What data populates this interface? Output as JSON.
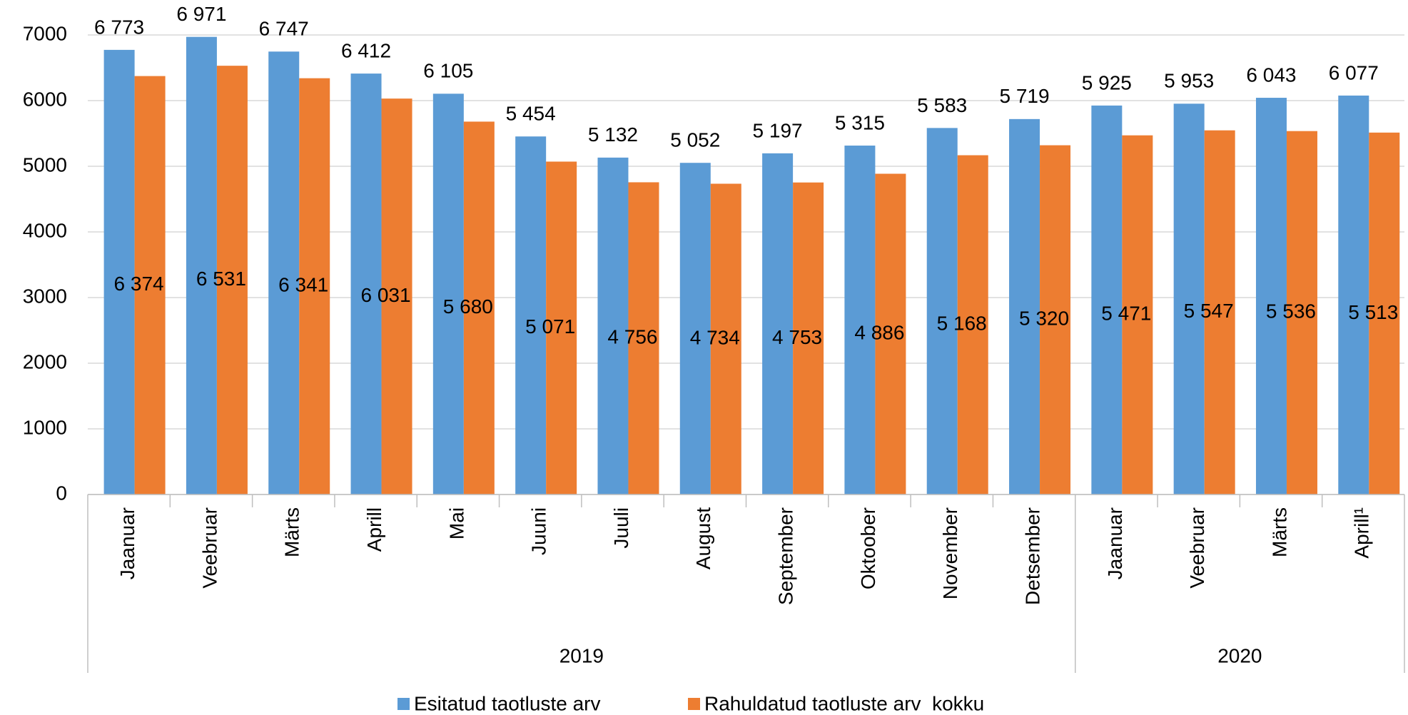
{
  "chart_data": {
    "type": "bar",
    "category_groups": [
      {
        "label": "2019",
        "categories": [
          "Jaanuar",
          "Veebruar",
          "Märts",
          "Aprill",
          "Mai",
          "Juuni",
          "Juuli",
          "August",
          "September",
          "Oktoober",
          "November",
          "Detsember"
        ]
      },
      {
        "label": "2020",
        "categories": [
          "Jaanuar",
          "Veebruar",
          "Märts",
          "Aprill¹"
        ]
      }
    ],
    "series": [
      {
        "name": "Esitatud taotluste arv",
        "color": "#5b9bd5",
        "values": [
          6773,
          6971,
          6747,
          6412,
          6105,
          5454,
          5132,
          5052,
          5197,
          5315,
          5583,
          5719,
          5925,
          5953,
          6043,
          6077
        ],
        "value_labels": [
          "6 773",
          "6 971",
          "6 747",
          "6 412",
          "6 105",
          "5 454",
          "5 132",
          "5 052",
          "5 197",
          "5 315",
          "5 583",
          "5 719",
          "5 925",
          "5 953",
          "6 043",
          "6 077"
        ]
      },
      {
        "name": "Rahuldatud taotluste arv  kokku",
        "color": "#ed7d31",
        "values": [
          6374,
          6531,
          6341,
          6031,
          5680,
          5071,
          4756,
          4734,
          4753,
          4886,
          5168,
          5320,
          5471,
          5547,
          5536,
          5513
        ],
        "value_labels": [
          "6 374",
          "6 531",
          "6 341",
          "6 031",
          "5 680",
          "5 071",
          "4 756",
          "4 734",
          "4 753",
          "4 886",
          "5 168",
          "5 320",
          "5 471",
          "5 547",
          "5 536",
          "5 513"
        ]
      }
    ],
    "ylim": [
      0,
      7000
    ],
    "yticks": [
      0,
      1000,
      2000,
      3000,
      4000,
      5000,
      6000,
      7000
    ],
    "grid": true,
    "legend": "bottom"
  }
}
